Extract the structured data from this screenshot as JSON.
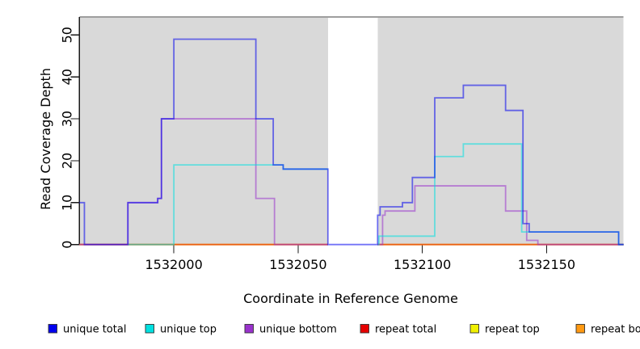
{
  "figure": {
    "x_axis_title": "Coordinate in Reference Genome",
    "y_axis_title": "Read Coverage Depth"
  },
  "chart_data": {
    "type": "line",
    "subtype": "step-coverage",
    "title": "",
    "xlabel": "Coordinate in Reference Genome",
    "ylabel": "Read Coverage Depth",
    "xlim": [
      1531962,
      1532181
    ],
    "ylim": [
      0,
      54.3
    ],
    "x_ticks": [
      1532000,
      1532050,
      1532100,
      1532150
    ],
    "y_ticks": [
      0,
      10,
      20,
      30,
      40,
      50
    ],
    "grid": false,
    "plot_background_color": "#ffffff",
    "region_color": "#d9d9d9",
    "region_border_color": "#9e9e9e",
    "background_regions": [
      {
        "x_start": 1531962,
        "x_end": 1532062
      },
      {
        "x_start": 1532082,
        "x_end": 1532181
      }
    ],
    "gap_region": {
      "x_start": 1532062,
      "x_end": 1532082
    },
    "line_opacity": 0.55,
    "line_width": 1.8,
    "legend_position": "bottom",
    "legend_order": [
      "unique total",
      "unique top",
      "unique bottom",
      "repeat total",
      "repeat top",
      "repeat bottom"
    ],
    "draw_order": [
      "repeat bottom",
      "repeat top",
      "repeat total",
      "unique bottom",
      "unique top",
      "unique total"
    ],
    "series": [
      {
        "name": "unique total",
        "color": "#0000EE",
        "segments": [
          [
            [
              1531962,
              10
            ],
            [
              1531964,
              0
            ],
            [
              1531981.5,
              10
            ],
            [
              1531993.5,
              11
            ],
            [
              1531995,
              30
            ],
            [
              1532000,
              49
            ],
            [
              1532033,
              30
            ],
            [
              1532040,
              19
            ],
            [
              1532044,
              18
            ],
            [
              1532062,
              0
            ],
            [
              1532082,
              7
            ],
            [
              1532083,
              9
            ],
            [
              1532092,
              10
            ],
            [
              1532096,
              16
            ],
            [
              1532105,
              35
            ],
            [
              1532116.5,
              38
            ],
            [
              1532133.5,
              32
            ],
            [
              1532140.5,
              5
            ],
            [
              1532143,
              3
            ],
            [
              1532179,
              0
            ],
            [
              1532181,
              0
            ]
          ]
        ]
      },
      {
        "name": "unique top",
        "color": "#00E0E0",
        "segments": [
          [
            [
              1531981.5,
              0
            ],
            [
              1532000,
              19
            ],
            [
              1532044,
              18
            ],
            [
              1532062,
              18
            ]
          ],
          [
            [
              1532082,
              0
            ],
            [
              1532082.5,
              2
            ],
            [
              1532105,
              21
            ],
            [
              1532116.5,
              24
            ],
            [
              1532140,
              3
            ],
            [
              1532179,
              0
            ],
            [
              1532181,
              0
            ]
          ]
        ]
      },
      {
        "name": "unique bottom",
        "color": "#9932CC",
        "segments": [
          [
            [
              1531962,
              0
            ],
            [
              1531981.5,
              10
            ],
            [
              1531993.5,
              11
            ],
            [
              1531995,
              30
            ],
            [
              1532033,
              11
            ],
            [
              1532040.5,
              0
            ],
            [
              1532062,
              0
            ]
          ],
          [
            [
              1532082,
              0
            ],
            [
              1532084,
              7
            ],
            [
              1532085,
              8
            ],
            [
              1532097,
              14
            ],
            [
              1532133.5,
              8
            ],
            [
              1532142,
              1
            ],
            [
              1532146.5,
              0
            ],
            [
              1532181,
              0
            ]
          ]
        ]
      },
      {
        "name": "repeat total",
        "color": "#E60000",
        "segments": [
          [
            [
              1531962,
              0
            ],
            [
              1532062,
              0
            ]
          ],
          [
            [
              1532082,
              0
            ],
            [
              1532181,
              0
            ]
          ]
        ]
      },
      {
        "name": "repeat top",
        "color": "#F0F000",
        "segments": [
          [
            [
              1531962,
              0
            ],
            [
              1532062,
              0
            ]
          ],
          [
            [
              1532082,
              0
            ],
            [
              1532181,
              0
            ]
          ]
        ]
      },
      {
        "name": "repeat bottom",
        "color": "#FF9912",
        "segments": [
          [
            [
              1531962,
              0
            ],
            [
              1532062,
              0
            ]
          ],
          [
            [
              1532082,
              0
            ],
            [
              1532181,
              0
            ]
          ]
        ]
      }
    ]
  }
}
